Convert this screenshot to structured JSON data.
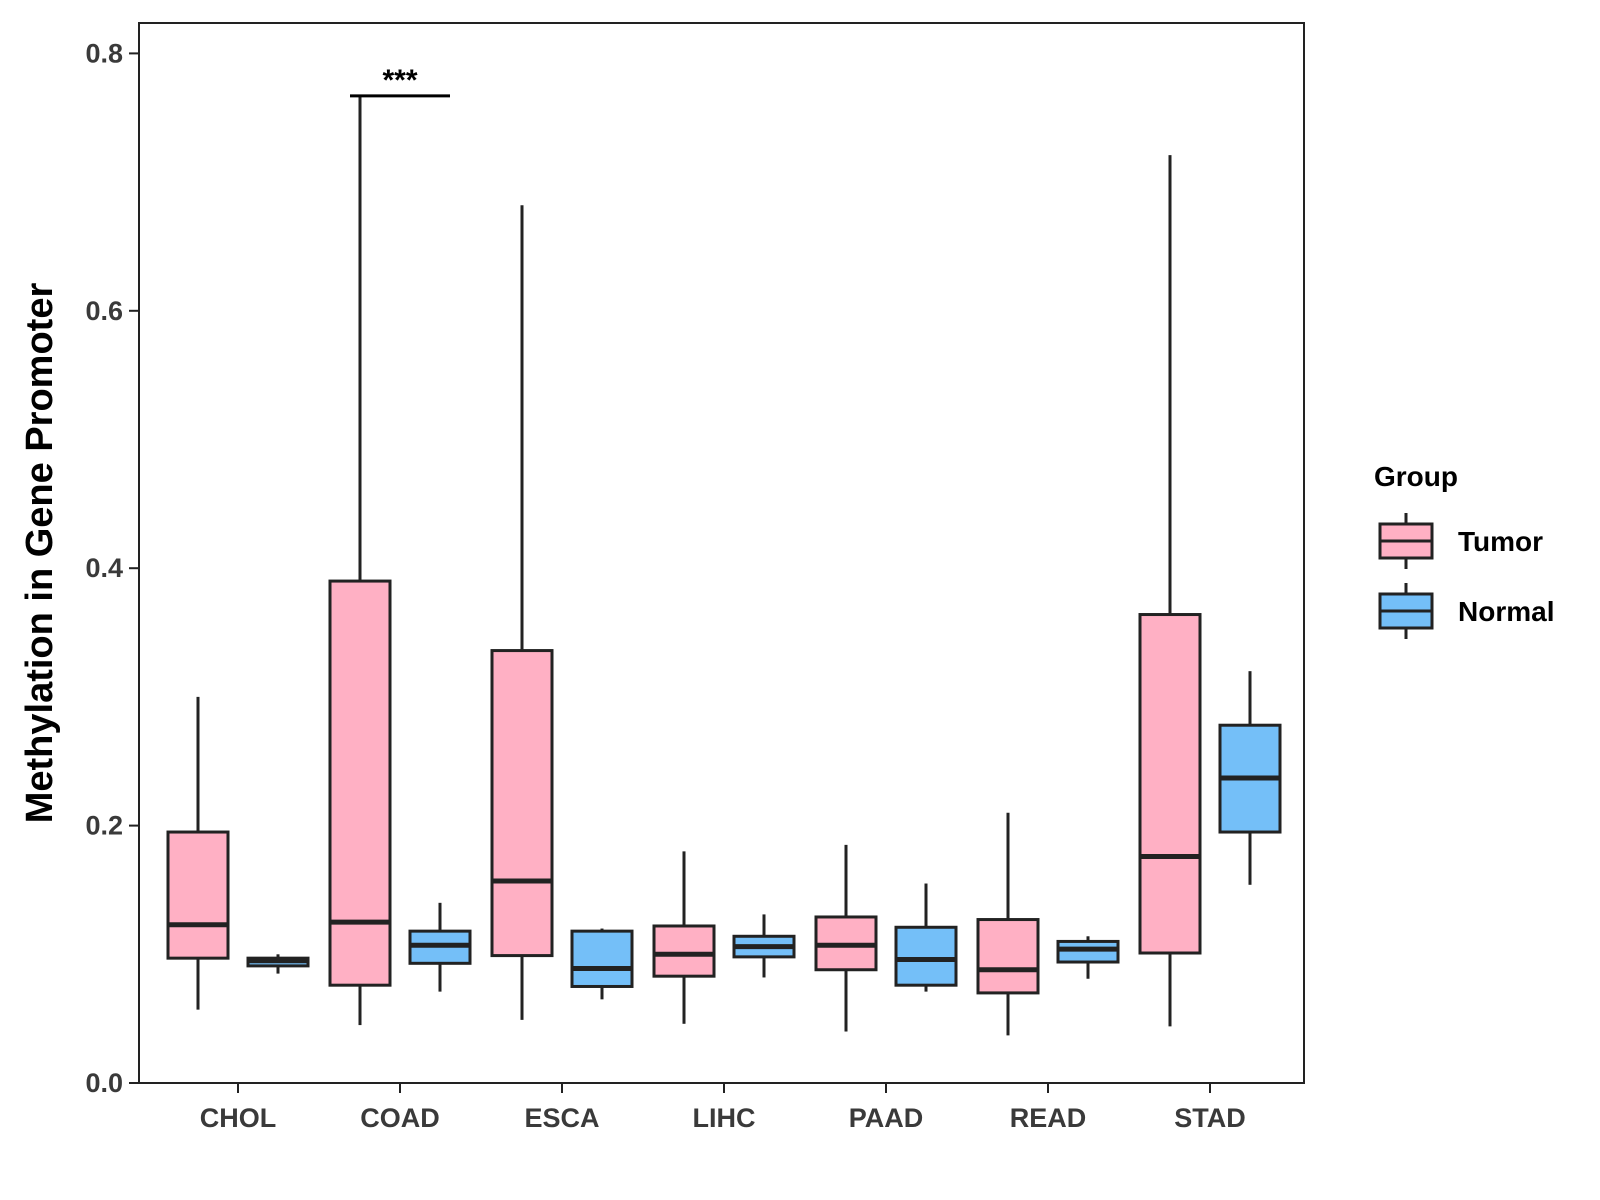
{
  "chart_data": {
    "type": "boxplot",
    "title": "",
    "xlabel": "",
    "ylabel": "Methylation in Gene Promoter",
    "ylim": [
      0,
      0.82
    ],
    "y_ticks": [
      0.0,
      0.2,
      0.4,
      0.6,
      0.8
    ],
    "y_tick_labels": [
      "0.0",
      "0.2",
      "0.4",
      "0.6",
      "0.8"
    ],
    "categories": [
      "CHOL",
      "COAD",
      "ESCA",
      "LIHC",
      "PAAD",
      "READ",
      "STAD"
    ],
    "grid": false,
    "legend": {
      "title": "Group",
      "position": "right",
      "entries": [
        {
          "name": "Tumor",
          "color": "#FFB0C4"
        },
        {
          "name": "Normal",
          "color": "#74BFF8"
        }
      ]
    },
    "series": [
      {
        "name": "Tumor",
        "color": "#FFB0C4",
        "boxes": [
          {
            "category": "CHOL",
            "min": 0.057,
            "q1": 0.097,
            "median": 0.123,
            "q3": 0.195,
            "max": 0.3
          },
          {
            "category": "COAD",
            "min": 0.045,
            "q1": 0.076,
            "median": 0.125,
            "q3": 0.39,
            "max": 0.768
          },
          {
            "category": "ESCA",
            "min": 0.049,
            "q1": 0.099,
            "median": 0.157,
            "q3": 0.336,
            "max": 0.682
          },
          {
            "category": "LIHC",
            "min": 0.046,
            "q1": 0.083,
            "median": 0.1,
            "q3": 0.122,
            "max": 0.18
          },
          {
            "category": "PAAD",
            "min": 0.04,
            "q1": 0.088,
            "median": 0.107,
            "q3": 0.129,
            "max": 0.185
          },
          {
            "category": "READ",
            "min": 0.037,
            "q1": 0.07,
            "median": 0.088,
            "q3": 0.127,
            "max": 0.21
          },
          {
            "category": "STAD",
            "min": 0.044,
            "q1": 0.101,
            "median": 0.176,
            "q3": 0.364,
            "max": 0.721
          }
        ]
      },
      {
        "name": "Normal",
        "color": "#74BFF8",
        "boxes": [
          {
            "category": "CHOL",
            "min": 0.085,
            "q1": 0.091,
            "median": 0.095,
            "q3": 0.097,
            "max": 0.1
          },
          {
            "category": "COAD",
            "min": 0.071,
            "q1": 0.093,
            "median": 0.107,
            "q3": 0.118,
            "max": 0.14
          },
          {
            "category": "ESCA",
            "min": 0.065,
            "q1": 0.075,
            "median": 0.089,
            "q3": 0.118,
            "max": 0.12
          },
          {
            "category": "LIHC",
            "min": 0.082,
            "q1": 0.098,
            "median": 0.106,
            "q3": 0.114,
            "max": 0.131
          },
          {
            "category": "PAAD",
            "min": 0.071,
            "q1": 0.076,
            "median": 0.096,
            "q3": 0.121,
            "max": 0.155
          },
          {
            "category": "READ",
            "min": 0.081,
            "q1": 0.094,
            "median": 0.104,
            "q3": 0.11,
            "max": 0.114
          },
          {
            "category": "STAD",
            "min": 0.154,
            "q1": 0.195,
            "median": 0.237,
            "q3": 0.278,
            "max": 0.32
          }
        ]
      }
    ],
    "annotations": [
      {
        "category": "COAD",
        "text": "***",
        "y": 0.767
      }
    ]
  }
}
